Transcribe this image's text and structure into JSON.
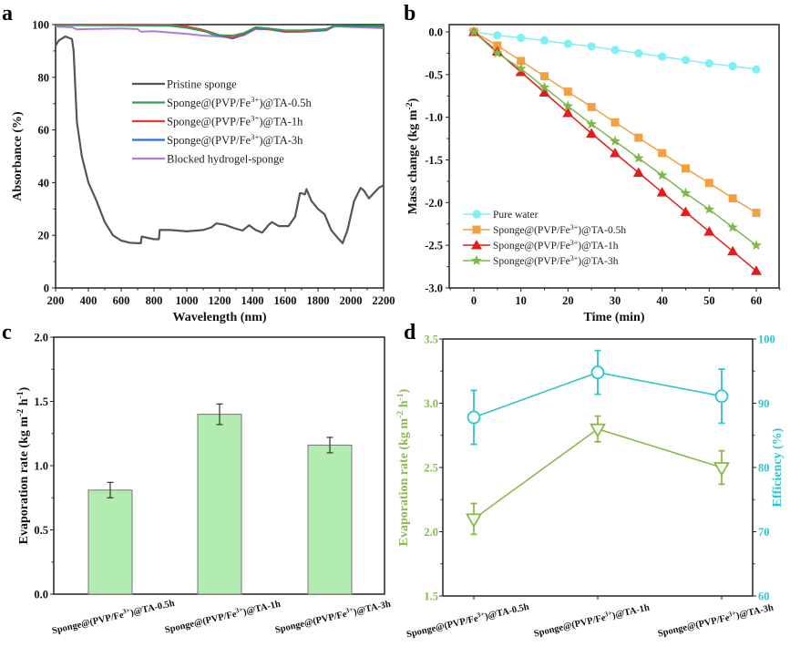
{
  "chart_data": [
    {
      "panel": "a",
      "type": "line",
      "xlabel": "Wavelength (nm)",
      "ylabel": "Absorbance (%)",
      "xlim": [
        200,
        2200
      ],
      "ylim": [
        0,
        100
      ],
      "xticks": [
        200,
        400,
        600,
        800,
        1000,
        1200,
        1400,
        1600,
        1800,
        2000,
        2200
      ],
      "yticks": [
        0,
        20,
        40,
        60,
        80,
        100
      ],
      "legend_position": "center-right",
      "series": [
        {
          "name": "Pristine sponge",
          "color": "#555555",
          "x": [
            200,
            220,
            260,
            300,
            310,
            330,
            360,
            400,
            450,
            500,
            550,
            600,
            650,
            700,
            720,
            725,
            800,
            830,
            835,
            900,
            1000,
            1100,
            1150,
            1180,
            1230,
            1300,
            1340,
            1380,
            1420,
            1460,
            1500,
            1520,
            1560,
            1620,
            1660,
            1690,
            1700,
            1720,
            1730,
            1760,
            1800,
            1840,
            1880,
            1920,
            1950,
            1980,
            2020,
            2060,
            2080,
            2110,
            2140,
            2170,
            2200
          ],
          "y": [
            92,
            94,
            95.5,
            94.5,
            90,
            63,
            50,
            40,
            33,
            25,
            20,
            18,
            17.2,
            17,
            17,
            19.5,
            18.5,
            18.5,
            22,
            22,
            21.5,
            22,
            23,
            24.5,
            24,
            22.5,
            21.8,
            23.8,
            22,
            21,
            24,
            25,
            23.5,
            23.5,
            27,
            36,
            36,
            35.5,
            37.5,
            33,
            30,
            28,
            22,
            19,
            17,
            22,
            33,
            38,
            37,
            34,
            36,
            38,
            39
          ]
        },
        {
          "name": "Sponge@(PVP/Fe³⁺)@TA-0.5h",
          "color": "#2ea05a",
          "x": [
            200,
            600,
            900,
            1000,
            1100,
            1200,
            1280,
            1350,
            1420,
            1500,
            1600,
            1700,
            1850,
            1900,
            2200
          ],
          "y": [
            99.8,
            99.7,
            99.5,
            98.8,
            97.5,
            96,
            95.8,
            96.8,
            99,
            98.5,
            97.8,
            97.8,
            98.3,
            99.6,
            99.2
          ]
        },
        {
          "name": "Sponge@(PVP/Fe³⁺)@TA-1h",
          "color": "#e23b3b",
          "x": [
            200,
            600,
            900,
            1000,
            1100,
            1150,
            1200,
            1280,
            1350,
            1420,
            1500,
            1600,
            1700,
            1850,
            1900,
            2200
          ],
          "y": [
            99.9,
            99.9,
            99.8,
            99.3,
            98,
            97,
            96,
            95,
            96.5,
            98.8,
            98.3,
            97.5,
            97.5,
            98,
            99.5,
            99.3
          ]
        },
        {
          "name": "Sponge@(PVP/Fe³⁺)@TA-3h",
          "color": "#2a6fe0",
          "x": [
            200,
            600,
            900,
            1000,
            1100,
            1150,
            1200,
            1280,
            1350,
            1420,
            1500,
            1600,
            1700,
            1850,
            1900,
            2200
          ],
          "y": [
            99.9,
            99.9,
            99.8,
            99.2,
            97.8,
            96.5,
            95.8,
            94.7,
            96.3,
            98.6,
            98.2,
            97.3,
            97.3,
            97.9,
            99.5,
            99.2
          ]
        },
        {
          "name": "Blocked hydrogel-sponge",
          "color": "#b07ae0",
          "x": [
            200,
            300,
            330,
            400,
            600,
            700,
            720,
            800,
            900,
            1000,
            1100,
            1200,
            1280,
            1350,
            1420,
            1500,
            1600,
            1700,
            1850,
            1900,
            2200
          ],
          "y": [
            99.2,
            99,
            98.2,
            98.3,
            98.5,
            98.3,
            97.3,
            97.5,
            97,
            96.5,
            95.8,
            95.5,
            95,
            96,
            98.3,
            98.2,
            97.2,
            97.3,
            97.8,
            99.3,
            98.6
          ]
        }
      ]
    },
    {
      "panel": "b",
      "type": "line",
      "xlabel": "Time (min)",
      "ylabel": "Mass change (kg m⁻²)",
      "xlim": [
        -5,
        65
      ],
      "ylim": [
        -3.0,
        0.1
      ],
      "xticks": [
        0,
        10,
        20,
        30,
        40,
        50,
        60
      ],
      "yticks": [
        0.0,
        -0.5,
        -1.0,
        -1.5,
        -2.0,
        -2.5,
        -3.0
      ],
      "legend_position": "bottom-left",
      "x": [
        0,
        5,
        10,
        15,
        20,
        25,
        30,
        35,
        40,
        45,
        50,
        55,
        60
      ],
      "series": [
        {
          "name": "Pure water",
          "color": "#7ff0f5",
          "marker": "circle",
          "values": [
            0,
            -0.04,
            -0.07,
            -0.1,
            -0.14,
            -0.17,
            -0.21,
            -0.25,
            -0.29,
            -0.33,
            -0.37,
            -0.4,
            -0.44
          ]
        },
        {
          "name": "Sponge@(PVP/Fe³⁺)@TA-0.5h",
          "color": "#f5a040",
          "marker": "square",
          "values": [
            0,
            -0.16,
            -0.34,
            -0.52,
            -0.7,
            -0.88,
            -1.06,
            -1.24,
            -1.42,
            -1.6,
            -1.77,
            -1.95,
            -2.12
          ]
        },
        {
          "name": "Sponge@(PVP/Fe³⁺)@TA-1h",
          "color": "#e51c1c",
          "marker": "triangle-up",
          "values": [
            0,
            -0.23,
            -0.47,
            -0.71,
            -0.95,
            -1.19,
            -1.42,
            -1.65,
            -1.88,
            -2.11,
            -2.34,
            -2.57,
            -2.8
          ]
        },
        {
          "name": "Sponge@(PVP/Fe³⁺)@TA-3h",
          "color": "#7db84a",
          "marker": "star",
          "values": [
            0,
            -0.25,
            -0.43,
            -0.65,
            -0.87,
            -1.08,
            -1.28,
            -1.48,
            -1.68,
            -1.89,
            -2.08,
            -2.29,
            -2.5
          ]
        }
      ]
    },
    {
      "panel": "c",
      "type": "bar",
      "xlabel": "",
      "ylabel": "Evaporation rate (kg m⁻² h⁻¹)",
      "ylim": [
        0,
        2.0
      ],
      "yticks": [
        0.0,
        0.5,
        1.0,
        1.5,
        2.0
      ],
      "categories": [
        "Sponge@(PVP/Fe³⁺)@TA-0.5h",
        "Sponge@(PVP/Fe³⁺)@TA-1h",
        "Sponge@(PVP/Fe³⁺)@TA-3h"
      ],
      "values": [
        0.81,
        1.4,
        1.16
      ],
      "errors": [
        0.06,
        0.08,
        0.06
      ],
      "bar_color": "#b2ecb0",
      "bar_edge": "#777777"
    },
    {
      "panel": "d",
      "type": "line",
      "xlabel": "",
      "categories": [
        "Sponge@(PVP/Fe³⁺)@TA-0.5h",
        "Sponge@(PVP/Fe³⁺)@TA-1h",
        "Sponge@(PVP/Fe³⁺)@TA-3h"
      ],
      "left_axis": {
        "label": "Evaporation rate (kg m⁻² h⁻¹)",
        "ylim": [
          1.5,
          3.5
        ],
        "yticks": [
          1.5,
          2.0,
          2.5,
          3.0,
          3.5
        ],
        "color": "#8db84a"
      },
      "right_axis": {
        "label": "Efficiency (%)",
        "ylim": [
          60,
          100
        ],
        "yticks": [
          60,
          70,
          80,
          90,
          100
        ],
        "color": "#2ec4cc"
      },
      "series": [
        {
          "name": "Evaporation rate",
          "axis": "left",
          "color": "#8db84a",
          "marker": "triangle-down-open",
          "values": [
            2.1,
            2.8,
            2.5
          ],
          "errors": [
            0.12,
            0.1,
            0.13
          ]
        },
        {
          "name": "Efficiency",
          "axis": "right",
          "color": "#2ec4cc",
          "marker": "circle-open",
          "values": [
            87.8,
            94.8,
            91.1
          ],
          "errors": [
            4.2,
            3.4,
            4.2
          ]
        }
      ]
    }
  ],
  "labels": {
    "panel_a": "a",
    "panel_b": "b",
    "panel_c": "c",
    "panel_d": "d"
  }
}
